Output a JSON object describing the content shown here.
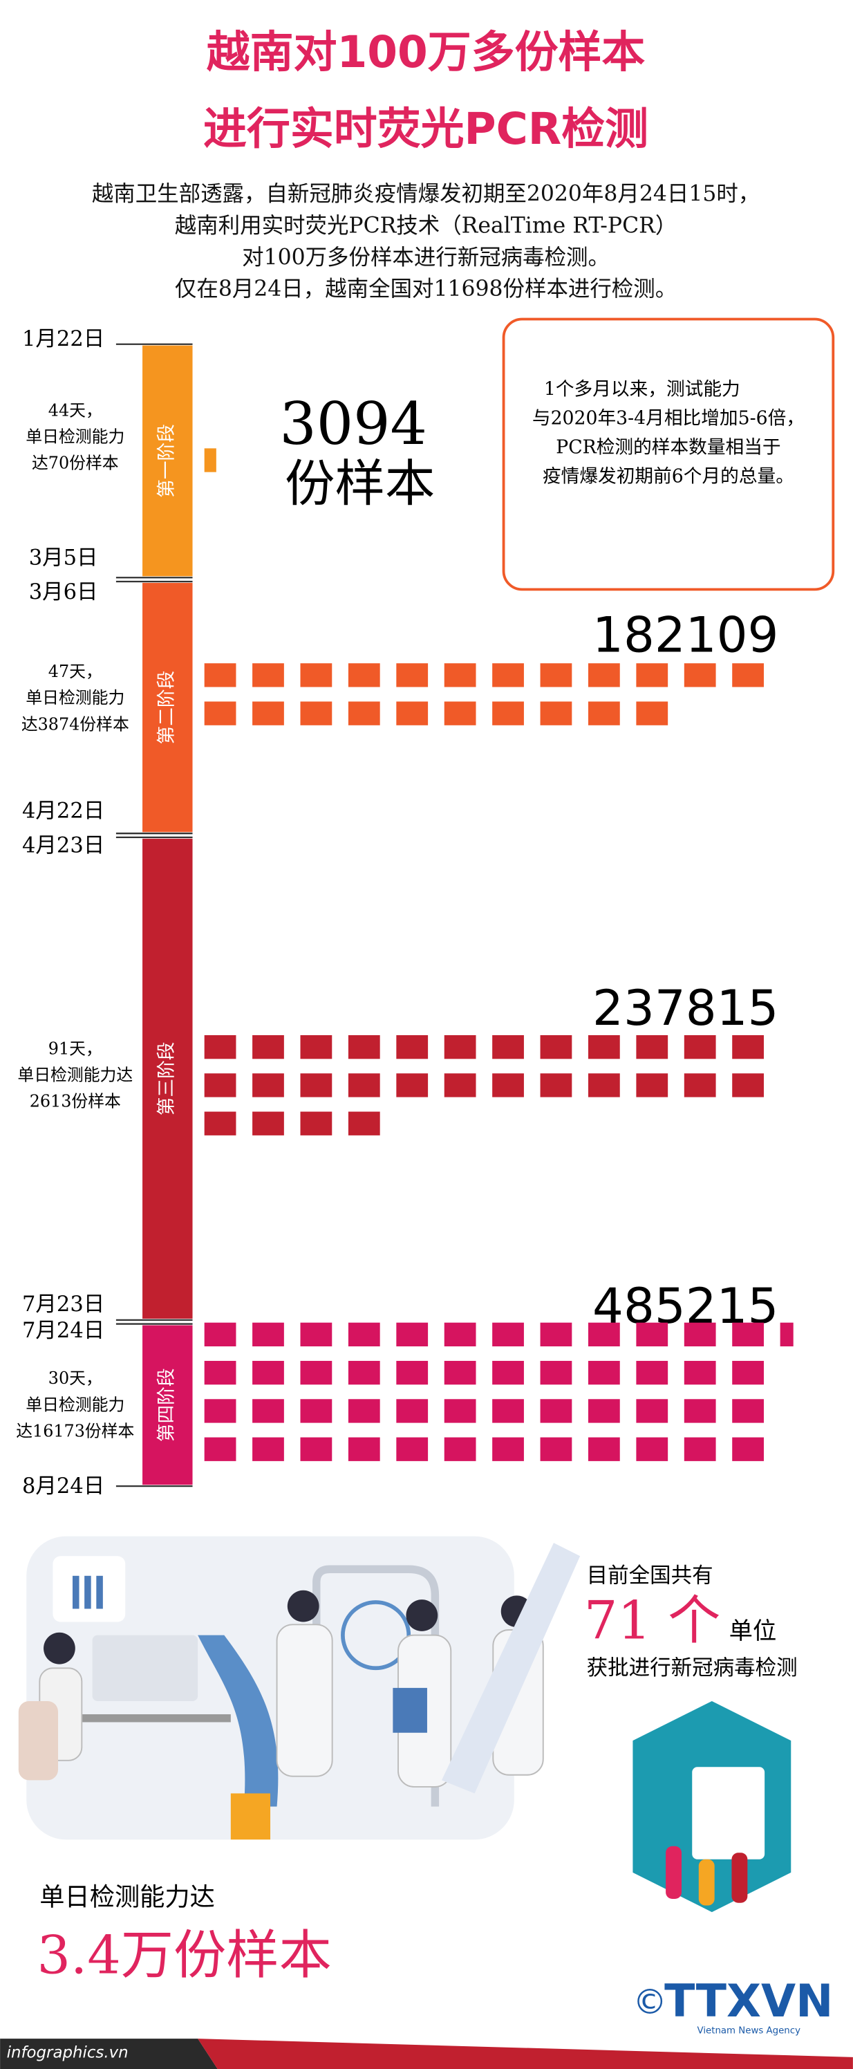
{
  "header": {
    "title_lines": [
      "越南对100万多份样本",
      "进行实时荧光PCR检测"
    ],
    "intro": [
      "越南卫生部透露，自新冠肺炎疫情爆发初期至2020年8月24日15时，",
      "越南利用实时荧光PCR技术（RealTime RT-PCR）",
      "对100万多份样本进行新冠病毒检测。",
      "仅在8月24日，越南全国对11698份样本进行检测。"
    ]
  },
  "timeline": {
    "phases": [
      {
        "label": "第一阶段",
        "start": "1月22日",
        "end": "3月5日",
        "note": [
          "44天，",
          "单日检测能力",
          "达70份样本"
        ],
        "total": "3094",
        "unit": "份样本"
      },
      {
        "label": "第二阶段",
        "start": "3月6日",
        "end": "4月22日",
        "note": [
          "47天，",
          "单日检测能力",
          "达3874份样本"
        ],
        "total": "182109"
      },
      {
        "label": "第三阶段",
        "start": "4月23日",
        "end": "7月23日",
        "note": [
          "91天，",
          "单日检测能力达",
          "2613份样本"
        ],
        "total": "237815"
      },
      {
        "label": "第四阶段",
        "start": "7月24日",
        "end": "8月24日",
        "note": [
          "30天，",
          "单日检测能力",
          "达16173份样本"
        ],
        "total": "485215"
      }
    ]
  },
  "callout": [
    "1个多月以来，测试能力",
    "与2020年3-4月相比增加5-6倍，",
    "PCR检测的样本数量相当于",
    "疫情爆发初期前6个月的总量。"
  ],
  "stats": {
    "units_prefix": "目前全国共有",
    "units_count": "71 个",
    "units_suffix": "单位",
    "units_line": "获批进行新冠病毒检测",
    "capacity_label": "单日检测能力达",
    "capacity_value": "3.4万份样本"
  },
  "footer": {
    "source": "infographics.vn",
    "logo": "TTXVN",
    "agency": "Vietnam News Agency"
  }
}
